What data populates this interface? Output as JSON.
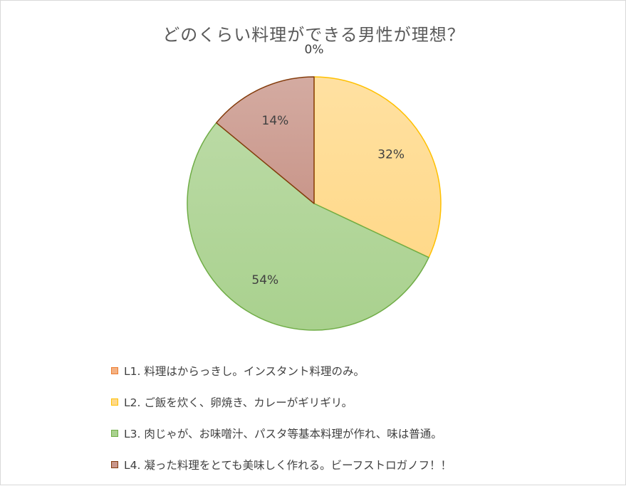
{
  "chart_data": {
    "type": "pie",
    "title": "どのくらい料理ができる男性が理想？",
    "slices": [
      {
        "label": "L1. 料理はからっきし。インスタント料理のみ。",
        "value": 0,
        "data_label": "0%",
        "fill": "#f4b183",
        "stroke": "#ed7d31"
      },
      {
        "label": "L2. ご飯を炊く、卵焼き、カレーがギリギリ。",
        "value": 32,
        "data_label": "32%",
        "fill": "#ffd98a",
        "stroke": "#ffc000"
      },
      {
        "label": "L3. 肉じゃが、お味噌汁、パスタ等基本料理が作れ、味は普通。",
        "value": 54,
        "data_label": "54%",
        "fill": "#a9d18e",
        "stroke": "#70ad47"
      },
      {
        "label": "L4. 凝った料理をとても美味しく作れる。ビーフストロガノフ！！",
        "value": 14,
        "data_label": "14%",
        "fill": "#c9968a",
        "stroke": "#843c0c"
      }
    ],
    "legend_position": "bottom-left"
  }
}
